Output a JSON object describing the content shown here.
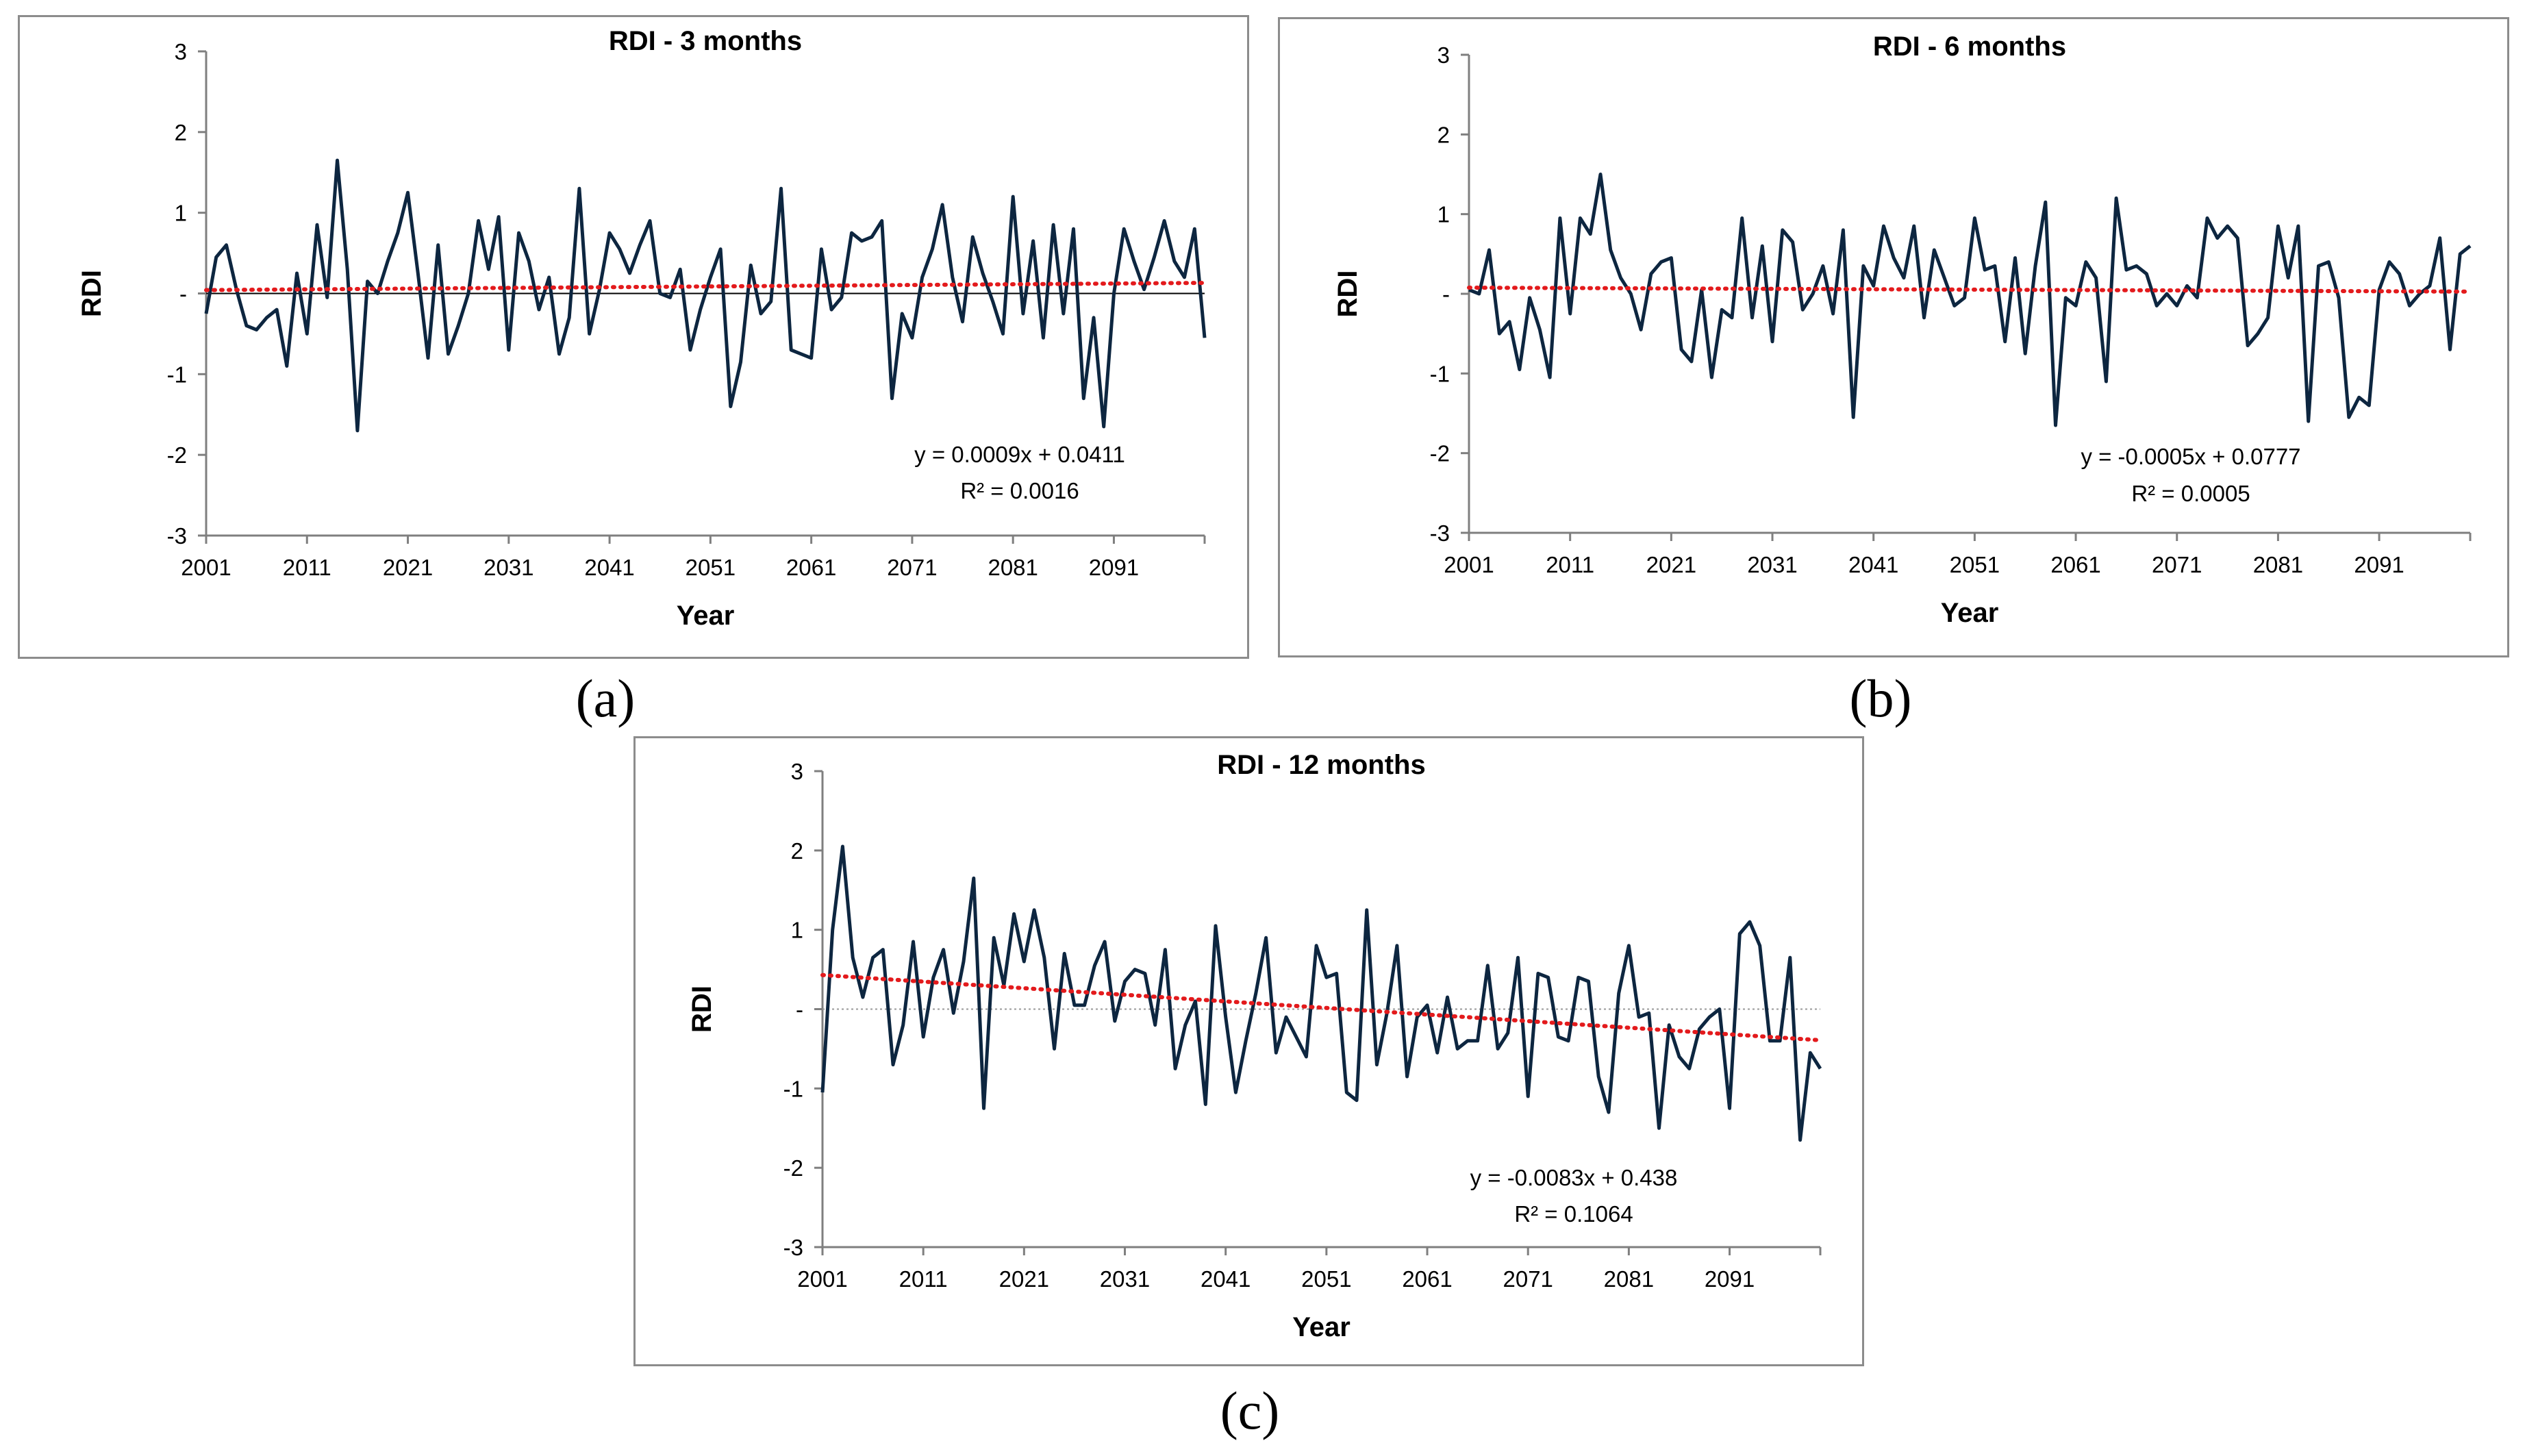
{
  "colors": {
    "line": "#0d2640",
    "trend": "#e31a1c",
    "zero": "#9a9a9a",
    "axis": "#7f7f7f",
    "frame": "#8c8c8c"
  },
  "chart_data": [
    {
      "id": "a",
      "panel_label": "(a)",
      "type": "line",
      "title": "RDI - 3 months",
      "xlabel": "Year",
      "ylabel": "RDI",
      "xlim": [
        2001,
        2100
      ],
      "ylim": [
        -3,
        3
      ],
      "y_ticks": [
        "-3",
        "-2",
        "-1",
        "-",
        "1",
        "2",
        "3"
      ],
      "x_ticks": [
        "2001",
        "2011",
        "2021",
        "2031",
        "2041",
        "2051",
        "2061",
        "2071",
        "2081",
        "2091"
      ],
      "zero_line_style": "solid",
      "trend": {
        "slope": 0.0009,
        "intercept": 0.0411
      },
      "equation": "y = 0.0009x + 0.0411",
      "r2": "R² = 0.0016",
      "x": [
        2001,
        2002,
        2003,
        2004,
        2005,
        2006,
        2007,
        2008,
        2009,
        2010,
        2011,
        2012,
        2013,
        2014,
        2015,
        2016,
        2017,
        2018,
        2019,
        2020,
        2021,
        2022,
        2023,
        2024,
        2025,
        2026,
        2027,
        2028,
        2029,
        2030,
        2031,
        2032,
        2033,
        2034,
        2035,
        2036,
        2037,
        2038,
        2039,
        2040,
        2041,
        2042,
        2043,
        2044,
        2045,
        2046,
        2047,
        2048,
        2049,
        2050,
        2051,
        2052,
        2053,
        2054,
        2055,
        2056,
        2057,
        2058,
        2059,
        2060,
        2061,
        2062,
        2063,
        2064,
        2065,
        2066,
        2067,
        2068,
        2069,
        2070,
        2071,
        2072,
        2073,
        2074,
        2075,
        2076,
        2077,
        2078,
        2079,
        2080,
        2081,
        2082,
        2083,
        2084,
        2085,
        2086,
        2087,
        2088,
        2089,
        2090,
        2091,
        2092,
        2093,
        2094,
        2095,
        2096,
        2097,
        2098,
        2099,
        2100
      ],
      "values": [
        -0.25,
        0.45,
        0.6,
        0.05,
        -0.4,
        -0.45,
        -0.3,
        -0.2,
        -0.9,
        0.25,
        -0.5,
        0.85,
        -0.05,
        1.65,
        0.3,
        -1.7,
        0.15,
        0.0,
        0.4,
        0.75,
        1.25,
        0.25,
        -0.8,
        0.6,
        -0.75,
        -0.4,
        0.0,
        0.9,
        0.3,
        0.95,
        -0.7,
        0.75,
        0.4,
        -0.2,
        0.2,
        -0.75,
        -0.3,
        1.3,
        -0.5,
        0.05,
        0.75,
        0.55,
        0.25,
        0.6,
        0.9,
        0.0,
        -0.05,
        0.3,
        -0.7,
        -0.2,
        0.2,
        0.55,
        -1.4,
        -0.85,
        0.35,
        -0.25,
        -0.1,
        1.3,
        -0.7,
        -0.75,
        -0.8,
        0.55,
        -0.2,
        -0.05,
        0.75,
        0.65,
        0.7,
        0.9,
        -1.3,
        -0.25,
        -0.55,
        0.2,
        0.55,
        1.1,
        0.2,
        -0.35,
        0.7,
        0.25,
        -0.1,
        -0.5,
        1.2,
        -0.25,
        0.65,
        -0.55,
        0.85,
        -0.25,
        0.8,
        -1.3,
        -0.3,
        -1.65,
        0.0,
        0.8,
        0.4,
        0.05,
        0.45,
        0.9,
        0.4,
        0.2,
        0.8,
        -0.55
      ]
    },
    {
      "id": "b",
      "panel_label": "(b)",
      "type": "line",
      "title": "RDI - 6 months",
      "xlabel": "Year",
      "ylabel": "RDI",
      "xlim": [
        2001,
        2100
      ],
      "ylim": [
        -3,
        3
      ],
      "y_ticks": [
        "-3",
        "-2",
        "-1",
        "-",
        "1",
        "2",
        "3"
      ],
      "x_ticks": [
        "2001",
        "2011",
        "2021",
        "2031",
        "2041",
        "2051",
        "2061",
        "2071",
        "2081",
        "2091"
      ],
      "zero_line_style": "none",
      "trend": {
        "slope": -0.0005,
        "intercept": 0.0777
      },
      "equation": "y = -0.0005x + 0.0777",
      "r2": "R² = 0.0005",
      "x": [
        2001,
        2002,
        2003,
        2004,
        2005,
        2006,
        2007,
        2008,
        2009,
        2010,
        2011,
        2012,
        2013,
        2014,
        2015,
        2016,
        2017,
        2018,
        2019,
        2020,
        2021,
        2022,
        2023,
        2024,
        2025,
        2026,
        2027,
        2028,
        2029,
        2030,
        2031,
        2032,
        2033,
        2034,
        2035,
        2036,
        2037,
        2038,
        2039,
        2040,
        2041,
        2042,
        2043,
        2044,
        2045,
        2046,
        2047,
        2048,
        2049,
        2050,
        2051,
        2052,
        2053,
        2054,
        2055,
        2056,
        2057,
        2058,
        2059,
        2060,
        2061,
        2062,
        2063,
        2064,
        2065,
        2066,
        2067,
        2068,
        2069,
        2070,
        2071,
        2072,
        2073,
        2074,
        2075,
        2076,
        2077,
        2078,
        2079,
        2080,
        2081,
        2082,
        2083,
        2084,
        2085,
        2086,
        2087,
        2088,
        2089,
        2090,
        2091,
        2092,
        2093,
        2094,
        2095,
        2096,
        2097,
        2098,
        2099,
        2100
      ],
      "values": [
        0.05,
        0.0,
        0.55,
        -0.5,
        -0.35,
        -0.95,
        -0.05,
        -0.45,
        -1.05,
        0.95,
        -0.25,
        0.95,
        0.75,
        1.5,
        0.55,
        0.2,
        0.0,
        -0.45,
        0.25,
        0.4,
        0.45,
        -0.7,
        -0.85,
        0.05,
        -1.05,
        -0.2,
        -0.3,
        0.95,
        -0.3,
        0.6,
        -0.6,
        0.8,
        0.65,
        -0.2,
        0.0,
        0.35,
        -0.25,
        0.8,
        -1.55,
        0.35,
        0.1,
        0.85,
        0.45,
        0.2,
        0.85,
        -0.3,
        0.55,
        0.2,
        -0.15,
        -0.05,
        0.95,
        0.3,
        0.35,
        -0.6,
        0.45,
        -0.75,
        0.35,
        1.15,
        -1.65,
        -0.05,
        -0.15,
        0.4,
        0.2,
        -1.1,
        1.2,
        0.3,
        0.35,
        0.25,
        -0.15,
        0.0,
        -0.15,
        0.1,
        -0.05,
        0.95,
        0.7,
        0.85,
        0.7,
        -0.65,
        -0.5,
        -0.3,
        0.85,
        0.2,
        0.85,
        -1.6,
        0.35,
        0.4,
        -0.05,
        -1.55,
        -1.3,
        -1.4,
        0.05,
        0.4,
        0.25,
        -0.15,
        0.0,
        0.1,
        0.7,
        -0.7,
        0.5,
        0.6
      ]
    },
    {
      "id": "c",
      "panel_label": "(c)",
      "type": "line",
      "title": "RDI - 12 months",
      "xlabel": "Year",
      "ylabel": "RDI",
      "xlim": [
        2001,
        2100
      ],
      "ylim": [
        -3,
        3
      ],
      "y_ticks": [
        "-3",
        "-2",
        "-1",
        "-",
        "1",
        "2",
        "3"
      ],
      "x_ticks": [
        "2001",
        "2011",
        "2021",
        "2031",
        "2041",
        "2051",
        "2061",
        "2071",
        "2081",
        "2091"
      ],
      "zero_line_style": "dotted",
      "trend": {
        "slope": -0.0083,
        "intercept": 0.438
      },
      "equation": "y = -0.0083x + 0.438",
      "r2": "R² = 0.1064",
      "x": [
        2001,
        2002,
        2003,
        2004,
        2005,
        2006,
        2007,
        2008,
        2009,
        2010,
        2011,
        2012,
        2013,
        2014,
        2015,
        2016,
        2017,
        2018,
        2019,
        2020,
        2021,
        2022,
        2023,
        2024,
        2025,
        2026,
        2027,
        2028,
        2029,
        2030,
        2031,
        2032,
        2033,
        2034,
        2035,
        2036,
        2037,
        2038,
        2039,
        2040,
        2041,
        2042,
        2043,
        2044,
        2045,
        2046,
        2047,
        2048,
        2049,
        2050,
        2051,
        2052,
        2053,
        2054,
        2055,
        2056,
        2057,
        2058,
        2059,
        2060,
        2061,
        2062,
        2063,
        2064,
        2065,
        2066,
        2067,
        2068,
        2069,
        2070,
        2071,
        2072,
        2073,
        2074,
        2075,
        2076,
        2077,
        2078,
        2079,
        2080,
        2081,
        2082,
        2083,
        2084,
        2085,
        2086,
        2087,
        2088,
        2089,
        2090,
        2091,
        2092,
        2093,
        2094,
        2095,
        2096,
        2097,
        2098,
        2099,
        2100
      ],
      "values": [
        -1.05,
        1.0,
        2.05,
        0.65,
        0.15,
        0.65,
        0.75,
        -0.7,
        -0.2,
        0.85,
        -0.35,
        0.4,
        0.75,
        -0.05,
        0.6,
        1.65,
        -1.25,
        0.9,
        0.3,
        1.2,
        0.6,
        1.25,
        0.65,
        -0.5,
        0.7,
        0.05,
        0.05,
        0.55,
        0.85,
        -0.15,
        0.35,
        0.5,
        0.45,
        -0.2,
        0.75,
        -0.75,
        -0.2,
        0.1,
        -1.2,
        1.05,
        -0.1,
        -1.05,
        -0.4,
        0.2,
        0.9,
        -0.55,
        -0.1,
        -0.35,
        -0.6,
        0.8,
        0.4,
        0.45,
        -1.05,
        -1.15,
        1.25,
        -0.7,
        -0.05,
        0.8,
        -0.85,
        -0.1,
        0.05,
        -0.55,
        0.15,
        -0.5,
        -0.4,
        -0.4,
        0.55,
        -0.5,
        -0.3,
        0.65,
        -1.1,
        0.45,
        0.4,
        -0.35,
        -0.4,
        0.4,
        0.35,
        -0.85,
        -1.3,
        0.2,
        0.8,
        -0.1,
        -0.05,
        -1.5,
        -0.2,
        -0.6,
        -0.75,
        -0.25,
        -0.1,
        0.0,
        -1.25,
        0.95,
        1.1,
        0.8,
        -0.4,
        -0.4,
        0.65,
        -1.65,
        -0.55,
        -0.75
      ]
    }
  ]
}
